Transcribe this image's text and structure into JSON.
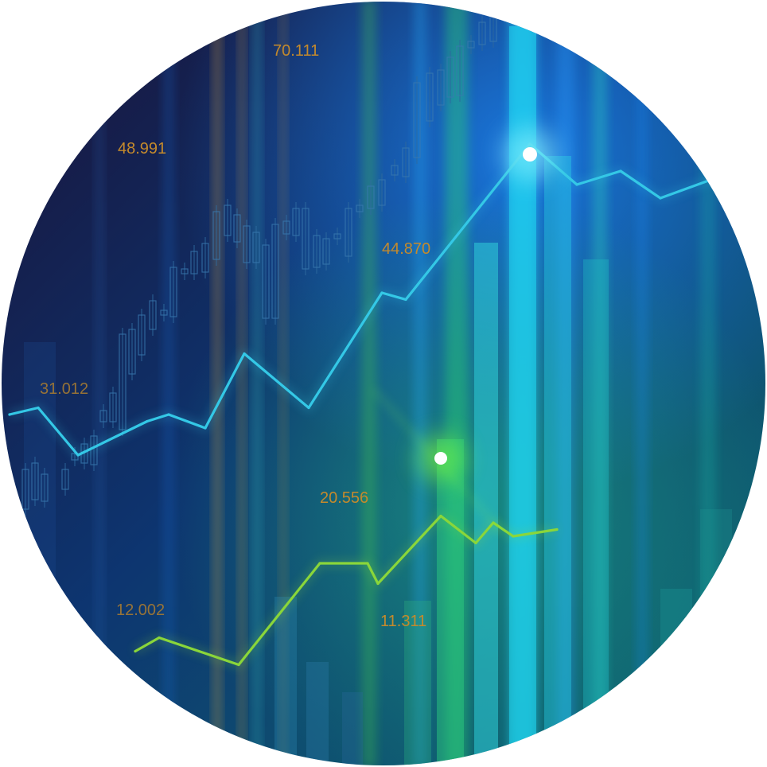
{
  "colors": {
    "bg_top_left": "#14123b",
    "bg_mid": "#0e3c78",
    "bg_bottom_right": "#0f6a72",
    "cyan_line": "#34c8e6",
    "green_line": "#8ad63a",
    "candle": "#2f6a9e",
    "label": "#c48a2c"
  },
  "chart_data": {
    "type": "line",
    "title": "",
    "xlabel": "",
    "ylabel": "",
    "price_labels": [
      "70.111",
      "48.991",
      "44.870",
      "31.012",
      "20.556",
      "12.002",
      "11.311"
    ],
    "series": [
      {
        "color": "#34c8e6",
        "points": [
          [
            0,
            44
          ],
          [
            1,
            45
          ],
          [
            2,
            38
          ],
          [
            3,
            43
          ],
          [
            4,
            44
          ],
          [
            5,
            42
          ],
          [
            6,
            53
          ],
          [
            7,
            45
          ],
          [
            8,
            62
          ],
          [
            9,
            61
          ],
          [
            10,
            84
          ],
          [
            11,
            78
          ],
          [
            12,
            80
          ],
          [
            13,
            76
          ],
          [
            14,
            79
          ]
        ]
      },
      {
        "color": "#8ad63a",
        "points": [
          [
            0,
            9
          ],
          [
            1,
            11
          ],
          [
            2,
            7
          ],
          [
            3,
            22
          ],
          [
            4,
            22
          ],
          [
            5,
            19
          ],
          [
            6,
            29
          ],
          [
            7,
            25
          ],
          [
            8,
            28
          ],
          [
            9,
            26
          ],
          [
            10,
            27
          ]
        ]
      }
    ]
  }
}
